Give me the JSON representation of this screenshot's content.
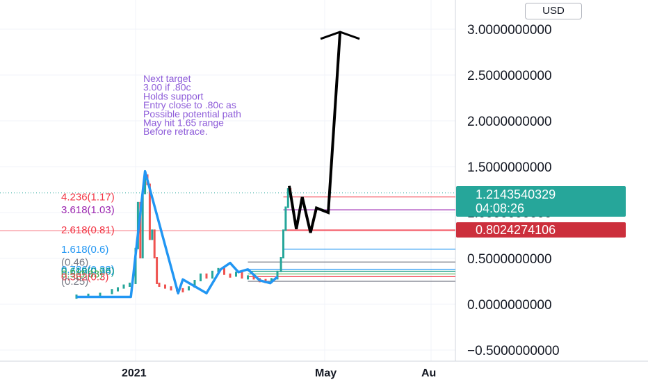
{
  "currency_label": "USD",
  "last_price": {
    "value": "1.2143540329",
    "countdown": "04:08:26",
    "color": "#26a69a"
  },
  "support_price": {
    "value": "0.8024274106",
    "color": "#cc2f3c"
  },
  "annotation": [
    "Next target",
    "3.00 if .80c",
    "Holds support",
    "Entry close to .80c as",
    "Possible potential path",
    "May hit 1.65 range",
    "Before retrace."
  ],
  "fib_labels": [
    {
      "text": "4.236(1.17)",
      "level": 1.17,
      "color": "#f23645"
    },
    {
      "text": "3.618(1.03)",
      "level": 1.03,
      "color": "#9c27b0"
    },
    {
      "text": "2.618(0.81)",
      "level": 0.81,
      "color": "#f23645"
    },
    {
      "text": "1.618(0.6)",
      "level": 0.6,
      "color": "#2196f3"
    },
    {
      "text": "(0.46)",
      "level": 0.46,
      "color": "#787b86"
    },
    {
      "text": "0.786(0.38)",
      "level": 0.38,
      "color": "#2196f3"
    },
    {
      "text": "0.618(0.36)",
      "level": 0.36,
      "color": "#089981"
    },
    {
      "text": "0.5(0.33)",
      "level": 0.33,
      "color": "#4caf50"
    },
    {
      "text": "0.382(0.3)",
      "level": 0.3,
      "color": "#f23645"
    },
    {
      "text": "(0.25)",
      "level": 0.25,
      "color": "#787b86"
    }
  ],
  "chart_data": {
    "type": "line",
    "yaxis": {
      "ticks": [
        3.0,
        2.5,
        2.0,
        1.5,
        1.0,
        0.5,
        0.0,
        -0.5
      ],
      "tick_labels": [
        "3.0000000000",
        "2.5000000000",
        "2.0000000000",
        "1.5000000000",
        "1.0000000000",
        "0.5000000000",
        "0.0000000000",
        "−0.5000000000"
      ],
      "ylim": [
        -0.63,
        3.25
      ]
    },
    "xaxis": {
      "tick_labels": [
        "2021",
        "May",
        "Au"
      ],
      "tick_positions_week": [
        2,
        18,
        27
      ]
    },
    "grid": true,
    "price_line": {
      "color": "#2196f3",
      "x_week": [
        -3,
        1.6,
        2.8,
        5.6,
        6,
        8,
        9.2,
        10,
        10.7,
        11.5,
        12.5,
        13.4,
        14
      ],
      "y": [
        0.08,
        0.08,
        1.45,
        0.12,
        0.27,
        0.12,
        0.38,
        0.45,
        0.35,
        0.38,
        0.26,
        0.23,
        0.3
      ]
    },
    "candles_close": {
      "color": "#26a69a",
      "x_week": [
        -3,
        -2,
        -1,
        0,
        0.5,
        1,
        1.5,
        2,
        2.2,
        2.4,
        2.6,
        2.8,
        3.0,
        3.2,
        3.4,
        3.6,
        3.8,
        4,
        4.5,
        5,
        5.5,
        6,
        6.5,
        7,
        7.5,
        8,
        8.5,
        9,
        9.5,
        10,
        10.5,
        11,
        11.5,
        12,
        12.5,
        13,
        13.5,
        14,
        14.3,
        14.5,
        14.7,
        14.9,
        15.1
      ],
      "y": [
        0.09,
        0.1,
        0.11,
        0.15,
        0.17,
        0.2,
        0.22,
        0.6,
        1.1,
        0.5,
        1.2,
        1.4,
        1.3,
        0.7,
        0.8,
        0.5,
        0.22,
        0.2,
        0.18,
        0.17,
        0.16,
        0.15,
        0.18,
        0.25,
        0.32,
        0.28,
        0.35,
        0.38,
        0.32,
        0.3,
        0.34,
        0.28,
        0.3,
        0.27,
        0.26,
        0.25,
        0.27,
        0.35,
        0.5,
        0.8,
        1.05,
        1.25,
        1.21
      ]
    },
    "projection_path": {
      "color": "#000000",
      "x_week": [
        15.0,
        15.6,
        16.1,
        16.8,
        17.3,
        18.3,
        19.3
      ],
      "y": [
        1.29,
        0.82,
        1.17,
        0.78,
        1.05,
        1.0,
        2.97
      ]
    },
    "horizontal_levels": [
      {
        "y": 1.17,
        "color": "#f23645",
        "x_from_week": 14.5
      },
      {
        "y": 1.03,
        "color": "#9c27b0",
        "x_from_week": 14.5
      },
      {
        "y": 0.81,
        "color": "#f23645",
        "x_from_week": 14.5
      },
      {
        "y": 0.6,
        "color": "#2196f3",
        "x_from_week": 14.5
      },
      {
        "y": 0.46,
        "color": "#787b86",
        "x_from_week": 11.5
      },
      {
        "y": 0.38,
        "color": "#2196f3",
        "x_from_week": 11.5
      },
      {
        "y": 0.36,
        "color": "#089981",
        "x_from_week": 11.5
      },
      {
        "y": 0.33,
        "color": "#4caf50",
        "x_from_week": 11.5
      },
      {
        "y": 0.3,
        "color": "#f23645",
        "x_from_week": 11.5
      },
      {
        "y": 0.25,
        "color": "#787b86",
        "x_from_week": 11.5
      }
    ],
    "last_price_level": 1.2143540329,
    "support_level": 0.8024274106
  }
}
